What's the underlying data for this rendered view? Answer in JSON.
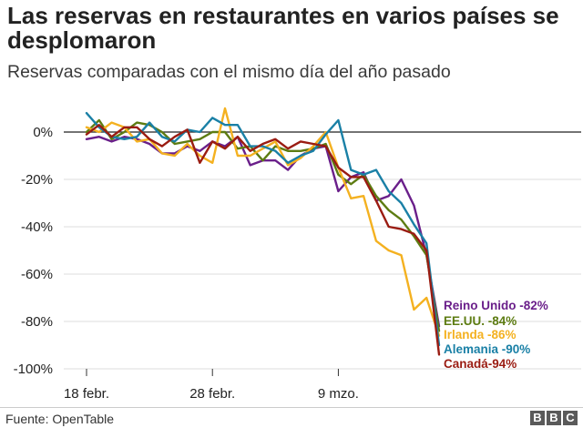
{
  "title": "Las reservas en restaurantes en varios países se desplomaron",
  "subtitle": "Reservas comparadas con el mismo día del año pasado",
  "footer": {
    "source": "Fuente: OpenTable",
    "logo": [
      "B",
      "B",
      "C"
    ]
  },
  "chart_data": {
    "type": "line",
    "title": "Las reservas en restaurantes en varios países se desplomaron",
    "subtitle": "Reservas comparadas con el mismo día del año pasado",
    "ylim": [
      -100,
      10
    ],
    "yticks": [
      0,
      -20,
      -40,
      -60,
      -80,
      -100
    ],
    "ytick_labels": [
      "0%",
      "-20%",
      "-40%",
      "-60%",
      "-80%",
      "-100%"
    ],
    "xticks": [
      0,
      10,
      20
    ],
    "xtick_labels": [
      "18 febr.",
      "28 febr.",
      "9 mzo."
    ],
    "zero_line": true,
    "grid": "horizontal",
    "legend_placement": "right-end-labels",
    "x": [
      0,
      1,
      2,
      3,
      4,
      5,
      6,
      7,
      8,
      9,
      10,
      11,
      12,
      13,
      14,
      15,
      16,
      17,
      18,
      19,
      20,
      21,
      22,
      23,
      24,
      25,
      26,
      27,
      28
    ],
    "series": [
      {
        "name": "Reino Unido",
        "label": "Reino Unido -82%",
        "color": "#6a1f8a",
        "values": [
          -3,
          -2,
          -4,
          -2,
          -3,
          -5,
          -9,
          -9,
          -6,
          -8,
          -4,
          -6,
          -2,
          -14,
          -12,
          -12,
          -16,
          -10,
          -7,
          -6,
          -25,
          -19,
          -17,
          -29,
          -27,
          -20,
          -31,
          -52,
          -82
        ]
      },
      {
        "name": "EE.UU.",
        "label": "EE.UU. -84%",
        "color": "#5d7c12",
        "values": [
          0,
          5,
          -3,
          0,
          4,
          3,
          0,
          -5,
          -4,
          -3,
          0,
          0,
          -7,
          -6,
          -12,
          -6,
          -8,
          -8,
          -7,
          -5,
          -18,
          -22,
          -18,
          -27,
          -33,
          -37,
          -44,
          -52,
          -84
        ]
      },
      {
        "name": "Irlanda",
        "label": "Irlanda -86%",
        "color": "#f4b120",
        "values": [
          2,
          0,
          4,
          2,
          -4,
          -3,
          -9,
          -10,
          -5,
          -10,
          -13,
          10,
          -10,
          -10,
          -7,
          -4,
          -14,
          -11,
          -6,
          0,
          -15,
          -28,
          -27,
          -46,
          -50,
          -52,
          -75,
          -70,
          -86
        ]
      },
      {
        "name": "Alemania",
        "label": "Alemania -90%",
        "color": "#1a80a6",
        "values": [
          8,
          2,
          -2,
          -3,
          -2,
          4,
          -2,
          -4,
          1,
          0,
          6,
          3,
          3,
          -6,
          -6,
          -8,
          -13,
          -10,
          -8,
          -1,
          5,
          -16,
          -18,
          -16,
          -25,
          -30,
          -39,
          -47,
          -90
        ]
      },
      {
        "name": "Canadá",
        "label": "Canadá-94%",
        "color": "#9a1c12",
        "values": [
          -1,
          3,
          -2,
          2,
          2,
          -3,
          -6,
          -2,
          1,
          -13,
          -4,
          -7,
          -2,
          -8,
          -5,
          -3,
          -7,
          -4,
          -5,
          -6,
          -15,
          -19,
          -19,
          -29,
          -40,
          -41,
          -43,
          -50,
          -94
        ]
      }
    ]
  }
}
